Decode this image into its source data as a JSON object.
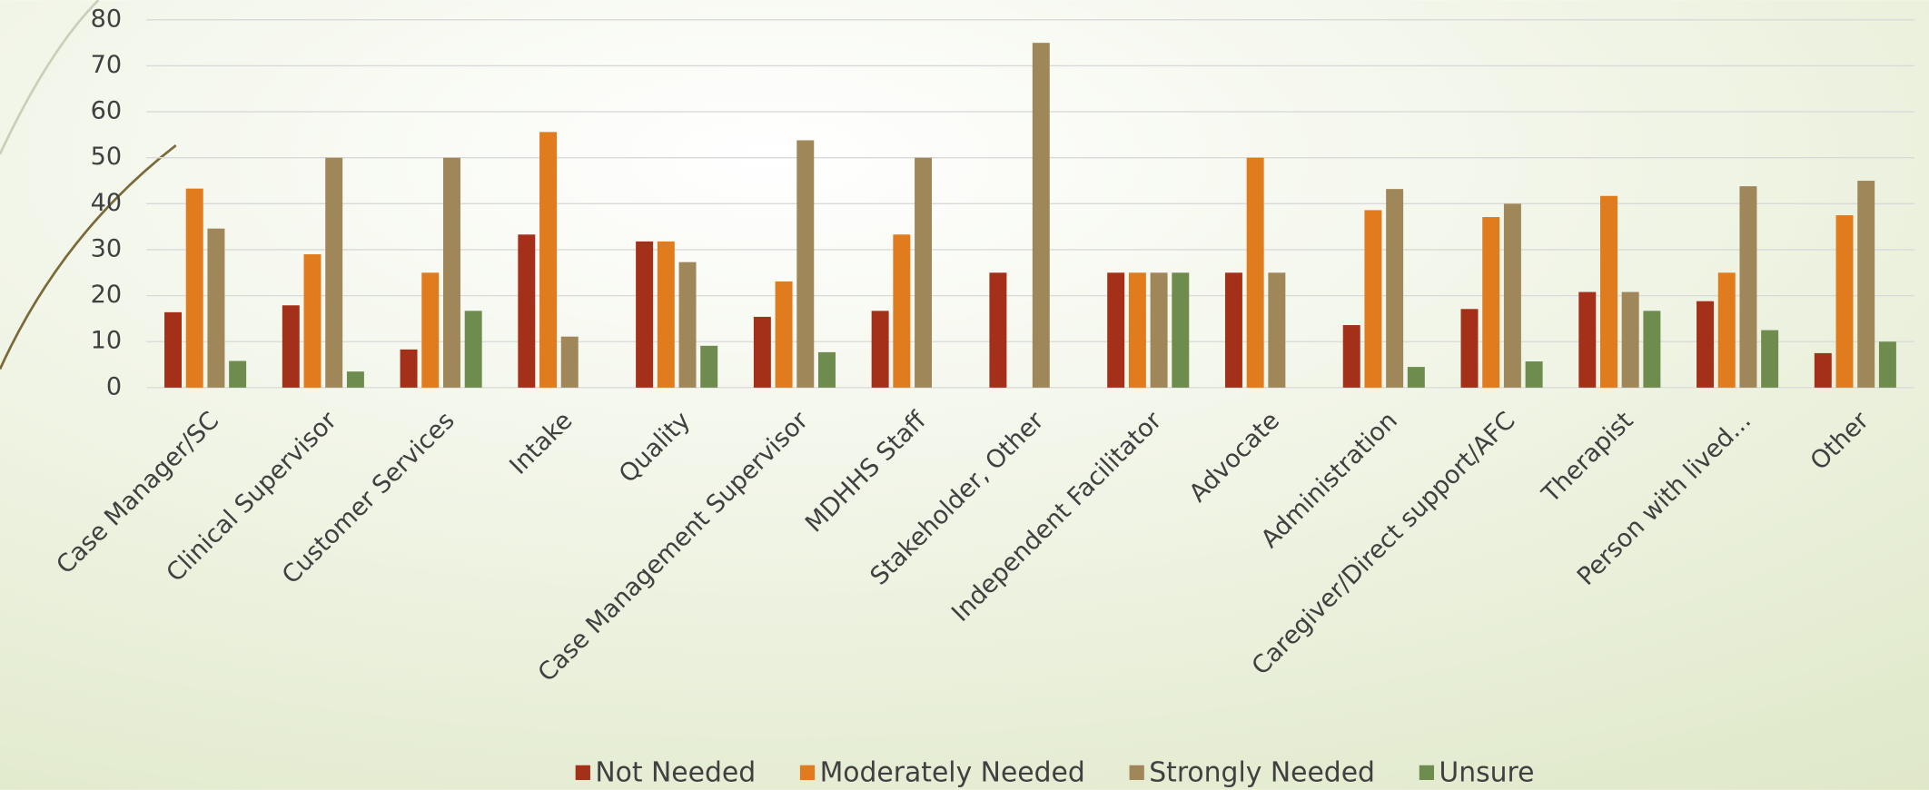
{
  "chart_data": {
    "type": "bar",
    "categories": [
      "Case Manager/SC",
      "Clinical Supervisor",
      "Customer Services",
      "Intake",
      "Quality",
      "Case Management Supervisor",
      "MDHHS Staff",
      "Stakeholder, Other",
      "Independent Facilitator",
      "Advocate",
      "Administration",
      "Caregiver/Direct support/AFC",
      "Therapist",
      "Person with lived...",
      "Other"
    ],
    "series": [
      {
        "name": "Not Needed",
        "color": "#a5301a",
        "values": [
          16.4,
          17.9,
          8.3,
          33.3,
          31.8,
          15.4,
          16.7,
          25,
          25,
          25,
          13.6,
          17.1,
          20.8,
          18.8,
          7.5
        ]
      },
      {
        "name": "Moderately Needed",
        "color": "#e07b1e",
        "values": [
          43.3,
          29,
          25,
          55.6,
          31.8,
          23.1,
          33.3,
          0,
          25,
          50,
          38.6,
          37.1,
          41.7,
          25,
          37.5
        ]
      },
      {
        "name": "Strongly Needed",
        "color": "#a0875a",
        "values": [
          34.6,
          50,
          50,
          11.1,
          27.3,
          53.8,
          50,
          75,
          25,
          25,
          43.2,
          40,
          20.8,
          43.8,
          45
        ]
      },
      {
        "name": "Unsure",
        "color": "#6e8c4e",
        "values": [
          5.8,
          3.5,
          16.7,
          0,
          9.1,
          7.7,
          0,
          0,
          25,
          0,
          4.5,
          5.7,
          16.7,
          12.5,
          10
        ]
      }
    ],
    "ylim": [
      0,
      80
    ],
    "yticks": [
      0,
      10,
      20,
      30,
      40,
      50,
      60,
      70,
      80
    ],
    "grid": true,
    "legend": "bottom"
  }
}
